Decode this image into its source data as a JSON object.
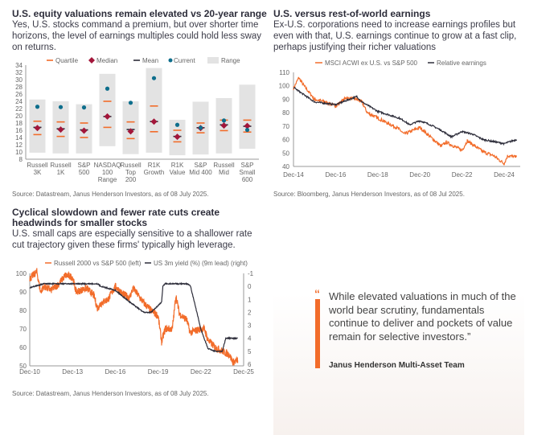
{
  "panels": {
    "p1": {
      "title": "U.S. equity valuations remain elevated vs 20-year range",
      "subtitle": "Yes, U.S. stocks command a premium, but over shorter time horizons, the level of earnings multiples could hold less sway on returns.",
      "source": "Source: Datastream, Janus Henderson Investors, as of 08 July 2025."
    },
    "p2": {
      "title": "U.S. versus rest-of-world earnings",
      "subtitle": "Ex-U.S. corporations need to increase earnings profiles but even with that, U.S. earnings continue to grow at a fast clip, perhaps justifying their richer valuations",
      "source": "Source: Bloomberg, Janus Henderson Investors, as of 08 Jul 2025."
    },
    "p3": {
      "title": "Cyclical slowdown and fewer rate cuts create headwinds for smaller stocks",
      "subtitle": "U.S. small caps are especially sensitive to a shallower rate cut trajectory given these firms' typically high leverage.",
      "source": "Source: Datastream, Janus Henderson Investors, as of 08 July 2025."
    }
  },
  "quote": {
    "mark": "“",
    "text": "While elevated valuations in much of the world bear scrutiny, fundamentals continue to deliver and pockets of value remain for selective investors.”",
    "author": "Janus Henderson Multi-Asset Team"
  },
  "colors": {
    "orange": "#f26c2a",
    "navy": "#2d2d3a",
    "median": "#a3163a",
    "current": "#0e6e8c",
    "range": "#e3e3e3"
  },
  "chart_data": [
    {
      "type": "bar",
      "subtype": "range-box",
      "legend": [
        "Quartile",
        "Median",
        "Mean",
        "Current",
        "Range"
      ],
      "ylim": [
        8,
        34
      ],
      "yticks": [
        8,
        10,
        12,
        14,
        16,
        18,
        20,
        22,
        24,
        26,
        28,
        30,
        32,
        34
      ],
      "categories": [
        "Russell 3K",
        "Russell 1K",
        "S&P 500",
        "NASDAQ 100 Range",
        "Russell Top 200",
        "R1K Growth",
        "R1K Value",
        "S&P Mid 400",
        "Russell Mid",
        "S&P Small 600"
      ],
      "range_min": [
        9.8,
        9.6,
        9.6,
        11.6,
        9.4,
        9.8,
        9.1,
        9.3,
        9.6,
        10.9
      ],
      "range_max": [
        24.5,
        24,
        23.2,
        31.6,
        24,
        33.2,
        18.9,
        23.9,
        24.9,
        28.6
      ],
      "quartile_low": [
        14.8,
        14.3,
        14,
        16.8,
        13.7,
        15.6,
        12.8,
        15.3,
        15.9,
        15.5
      ],
      "quartile_high": [
        18.5,
        18.3,
        18,
        24,
        18.3,
        22.7,
        16,
        18,
        18.8,
        18.8
      ],
      "median": [
        16.6,
        16.2,
        15.9,
        19.8,
        15.7,
        18.4,
        14.2,
        16.6,
        17.3,
        17.2
      ],
      "mean": [
        16.8,
        16.4,
        16.1,
        19.8,
        16.2,
        18.4,
        14.3,
        16.7,
        17.5,
        17.1
      ],
      "current": [
        22.5,
        22.4,
        22.3,
        27.5,
        23.6,
        30.4,
        17.5,
        16.7,
        18.7,
        16.1
      ]
    },
    {
      "type": "line",
      "ylim": [
        40,
        110
      ],
      "yticks": [
        40,
        50,
        60,
        70,
        80,
        90,
        100,
        110
      ],
      "xticks": [
        "Dec-14",
        "Dec-16",
        "Dec-18",
        "Dec-20",
        "Dec-22",
        "Dec-24"
      ],
      "series": [
        {
          "name": "MSCI ACWI ex U.S. vs S&P 500",
          "color": "#f26c2a",
          "points": [
            [
              "2014-12",
              98
            ],
            [
              "2015-03",
              106
            ],
            [
              "2015-06",
              100
            ],
            [
              "2015-12",
              90
            ],
            [
              "2016-06",
              88
            ],
            [
              "2016-12",
              85
            ],
            [
              "2017-06",
              91
            ],
            [
              "2017-12",
              90
            ],
            [
              "2018-03",
              88
            ],
            [
              "2018-06",
              80
            ],
            [
              "2018-12",
              76
            ],
            [
              "2019-06",
              72
            ],
            [
              "2019-12",
              68
            ],
            [
              "2020-03",
              64
            ],
            [
              "2020-12",
              69
            ],
            [
              "2021-06",
              62
            ],
            [
              "2021-12",
              55
            ],
            [
              "2022-03",
              58
            ],
            [
              "2022-12",
              52
            ],
            [
              "2023-03",
              59
            ],
            [
              "2023-12",
              51
            ],
            [
              "2024-06",
              48
            ],
            [
              "2024-12",
              42
            ],
            [
              "2025-02",
              48
            ],
            [
              "2025-07",
              47
            ]
          ]
        },
        {
          "name": "Relative earnings",
          "color": "#2d2d3a",
          "points": [
            [
              "2014-12",
              99
            ],
            [
              "2015-03",
              96
            ],
            [
              "2015-12",
              88
            ],
            [
              "2016-12",
              86
            ],
            [
              "2017-12",
              92
            ],
            [
              "2018-03",
              88
            ],
            [
              "2018-12",
              81
            ],
            [
              "2019-12",
              76
            ],
            [
              "2020-03",
              74
            ],
            [
              "2020-06",
              71
            ],
            [
              "2020-12",
              74
            ],
            [
              "2021-06",
              71
            ],
            [
              "2021-12",
              67
            ],
            [
              "2022-06",
              62
            ],
            [
              "2022-12",
              66
            ],
            [
              "2023-06",
              64
            ],
            [
              "2023-12",
              60
            ],
            [
              "2024-12",
              57
            ],
            [
              "2025-07",
              60
            ]
          ]
        }
      ]
    },
    {
      "type": "line",
      "ylim": [
        50,
        100
      ],
      "yticks": [
        50,
        60,
        70,
        80,
        90,
        100
      ],
      "y2lim": [
        -1,
        6
      ],
      "y2inverted": true,
      "y2ticks": [
        -1,
        0,
        1,
        2,
        3,
        4,
        5,
        6
      ],
      "xticks": [
        "Dec-10",
        "Dec-13",
        "Dec-16",
        "Dec-19",
        "Dec-22",
        "Dec-25"
      ],
      "series": [
        {
          "name": "Russell 2000 vs S&P 500 (left)",
          "color": "#f26c2a",
          "axis": "left",
          "points": [
            [
              "2010-12",
              97
            ],
            [
              "2011-06",
              101
            ],
            [
              "2011-09",
              90
            ],
            [
              "2011-12",
              93
            ],
            [
              "2012-06",
              91
            ],
            [
              "2012-12",
              94
            ],
            [
              "2013-06",
              99
            ],
            [
              "2013-12",
              98
            ],
            [
              "2014-03",
              90
            ],
            [
              "2014-12",
              92
            ],
            [
              "2015-06",
              88
            ],
            [
              "2015-09",
              81
            ],
            [
              "2015-12",
              84
            ],
            [
              "2016-06",
              86
            ],
            [
              "2016-12",
              93
            ],
            [
              "2017-06",
              89
            ],
            [
              "2017-12",
              87
            ],
            [
              "2018-03",
              92
            ],
            [
              "2018-12",
              84
            ],
            [
              "2019-06",
              80
            ],
            [
              "2019-12",
              77
            ],
            [
              "2020-03",
              63
            ],
            [
              "2020-06",
              70
            ],
            [
              "2020-12",
              70
            ],
            [
              "2021-03",
              88
            ],
            [
              "2021-06",
              78
            ],
            [
              "2021-12",
              75
            ],
            [
              "2022-03",
              68
            ],
            [
              "2022-12",
              70
            ],
            [
              "2023-03",
              70
            ],
            [
              "2023-06",
              64
            ],
            [
              "2023-12",
              60
            ],
            [
              "2024-06",
              58
            ],
            [
              "2024-12",
              56
            ],
            [
              "2025-03",
              52
            ],
            [
              "2025-07",
              53
            ]
          ]
        },
        {
          "name": "US 3m yield (%) (9m lead) (right)",
          "color": "#2d2d3a",
          "axis": "right",
          "points": [
            [
              "2010-12",
              0.1
            ],
            [
              "2011-12",
              -0.2
            ],
            [
              "2014-12",
              -0.2
            ],
            [
              "2015-09",
              -0.2
            ],
            [
              "2015-12",
              0
            ],
            [
              "2016-12",
              0.3
            ],
            [
              "2017-12",
              1.2
            ],
            [
              "2018-12",
              2.0
            ],
            [
              "2019-06",
              2.0
            ],
            [
              "2019-12",
              1.5
            ],
            [
              "2020-03",
              1.2
            ],
            [
              "2020-04",
              0
            ],
            [
              "2020-06",
              -0.2
            ],
            [
              "2021-12",
              -0.2
            ],
            [
              "2022-03",
              -0.1
            ],
            [
              "2022-06",
              1.0
            ],
            [
              "2022-12",
              3.3
            ],
            [
              "2023-06",
              4.8
            ],
            [
              "2023-12",
              5.0
            ],
            [
              "2024-06",
              5.0
            ],
            [
              "2024-09",
              4.0
            ],
            [
              "2025-07",
              4.0
            ]
          ]
        }
      ]
    }
  ]
}
